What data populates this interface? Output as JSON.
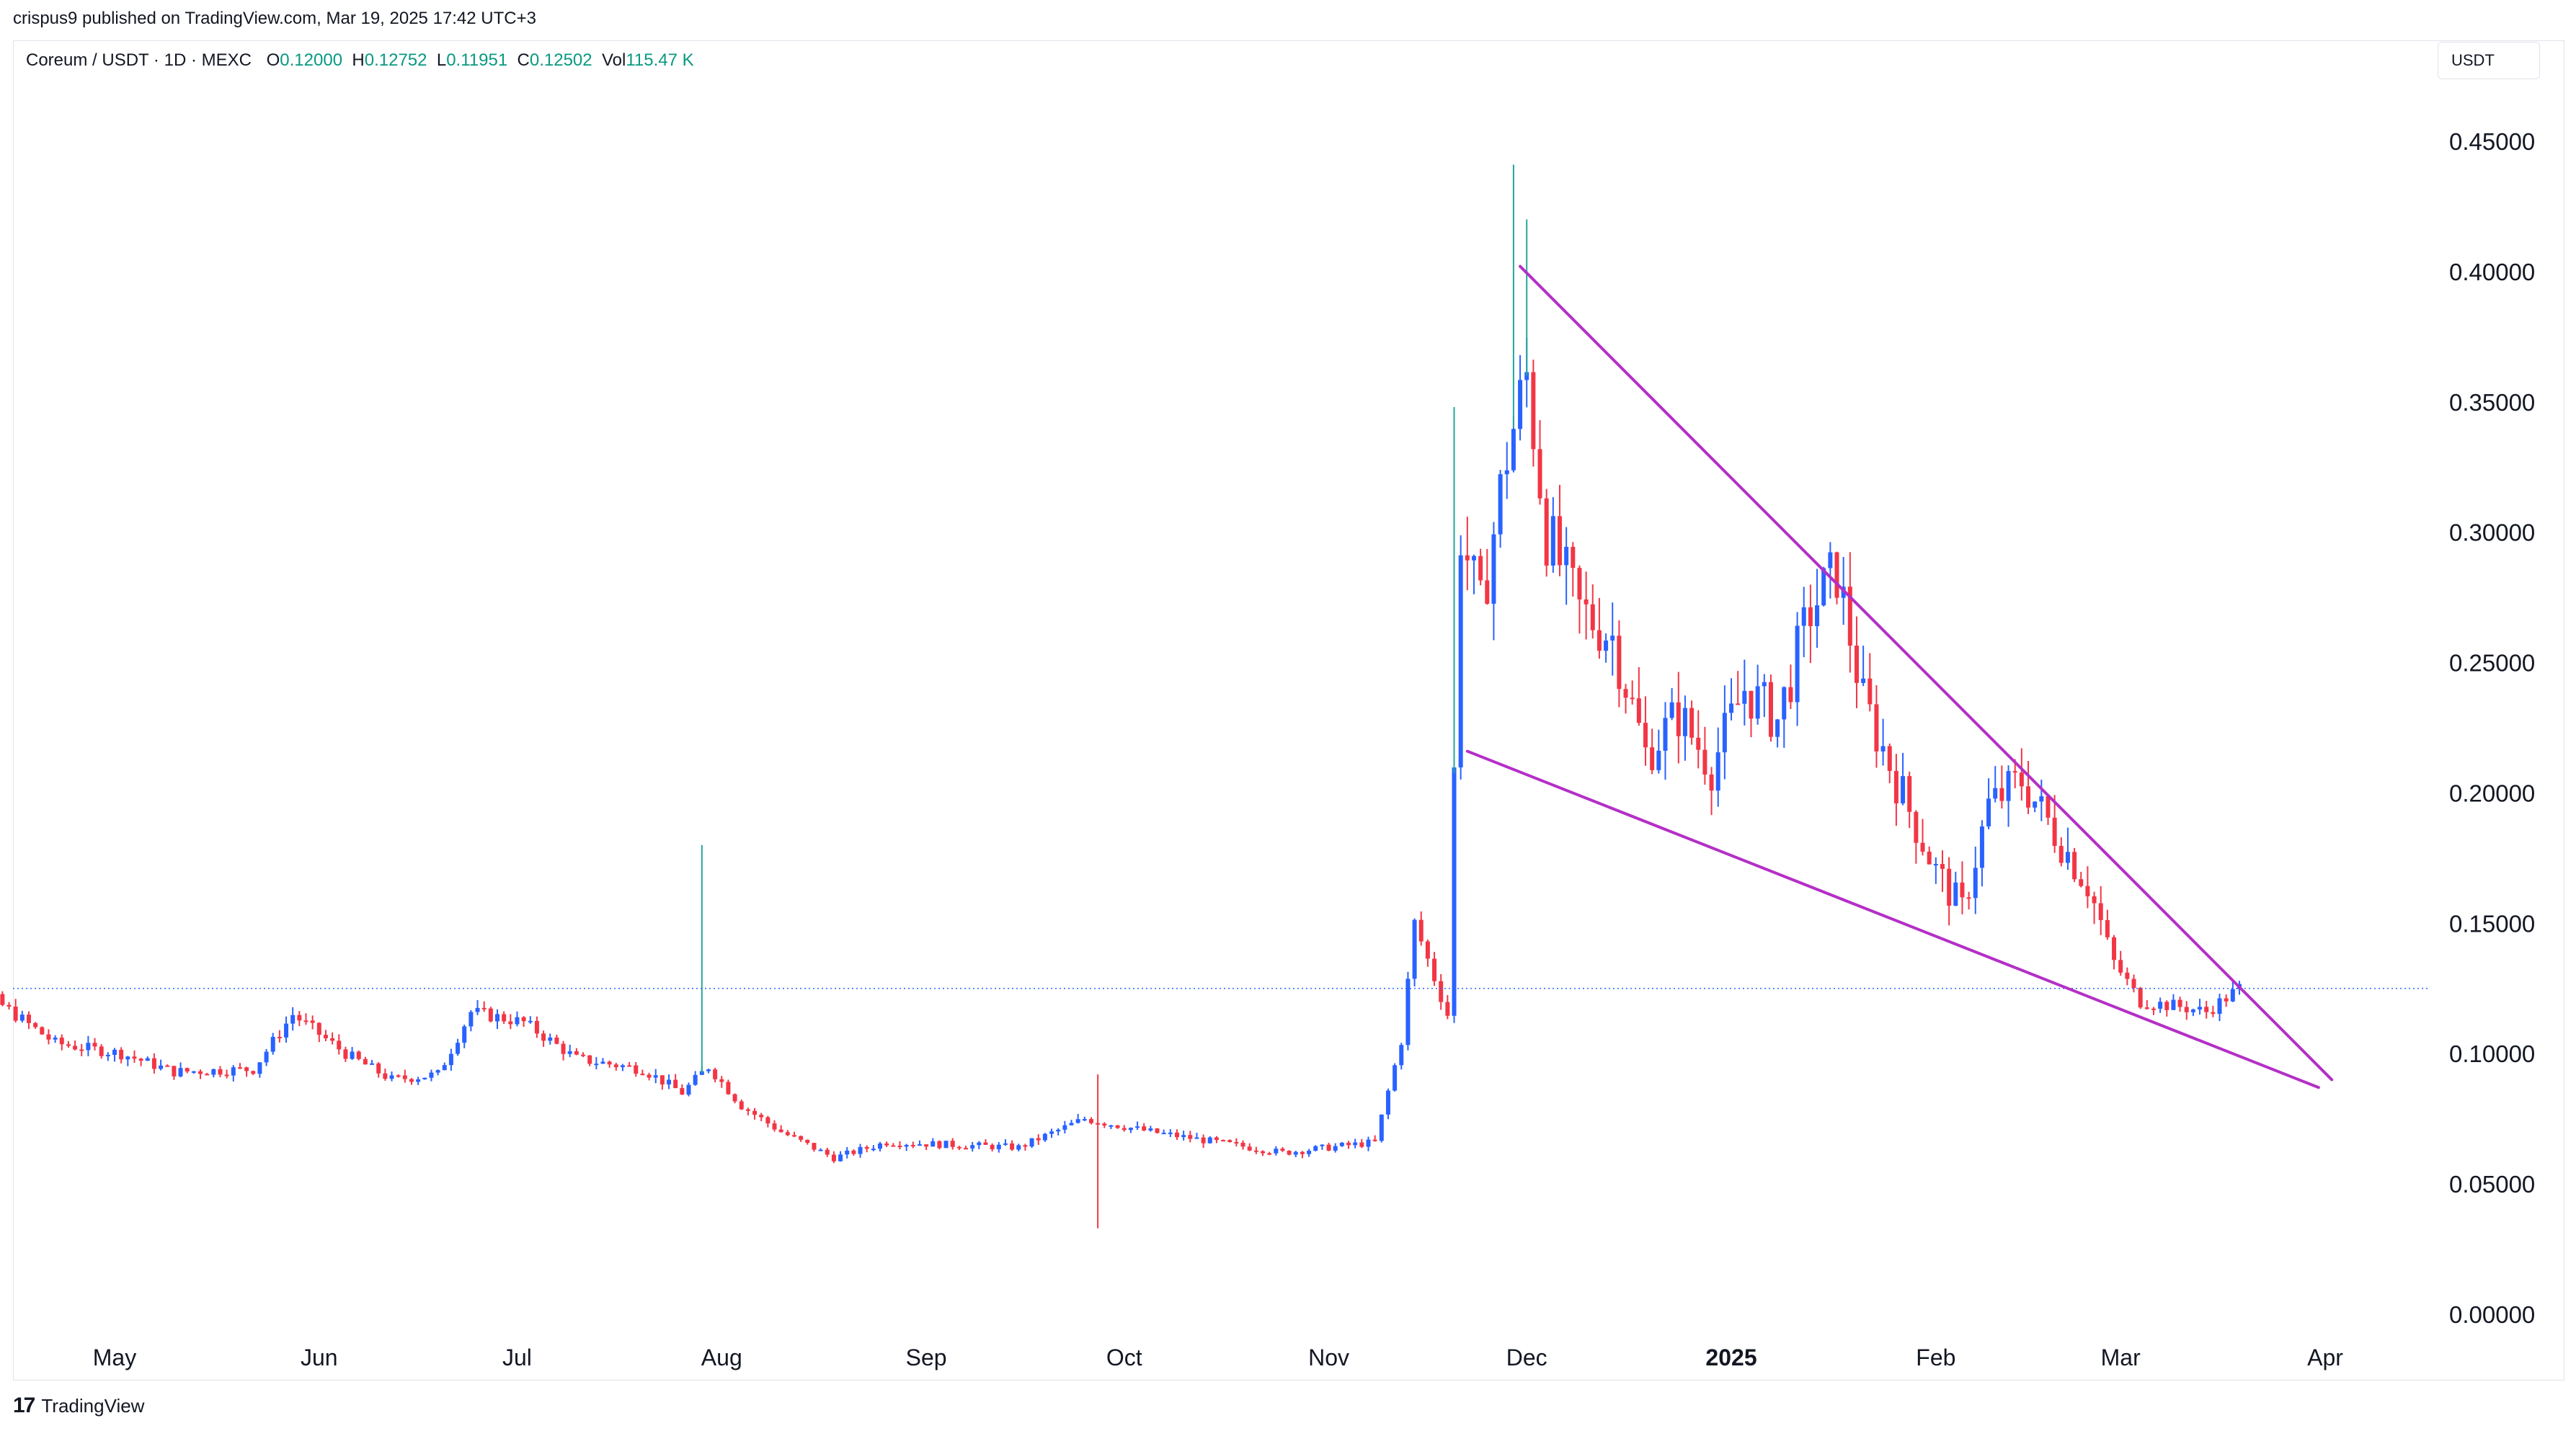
{
  "header": {
    "published": "crispus9 published on TradingView.com, Mar 19, 2025 17:42 UTC+3"
  },
  "legend": {
    "symbol": "Coreum / USDT · 1D · MEXC",
    "open_label": "O",
    "open": "0.12000",
    "high_label": "H",
    "high": "0.12752",
    "low_label": "L",
    "low": "0.11951",
    "close_label": "C",
    "close": "0.12502",
    "vol_label": "Vol",
    "vol": "115.47 K"
  },
  "unit_badge": "USDT",
  "footer": {
    "brand": "TradingView",
    "mark": "17"
  },
  "colors": {
    "up": "#2962ff",
    "down": "#f23645",
    "trendline": "#b42fc6",
    "price_line": "#2962ff"
  },
  "chart_data": {
    "type": "candlestick",
    "x_type": "date",
    "x_start": "2025-04-12",
    "x_end": "2025-04-30",
    "y_range": [
      -0.005,
      0.47
    ],
    "y_ticks": [
      "0.45000",
      "0.40000",
      "0.35000",
      "0.30000",
      "0.25000",
      "0.20000",
      "0.15000",
      "0.10000",
      "0.05000",
      "0.00000"
    ],
    "x_ticks": [
      {
        "label": "May",
        "date": "2024-05-01"
      },
      {
        "label": "Jun",
        "date": "2024-06-01"
      },
      {
        "label": "Jul",
        "date": "2024-07-01"
      },
      {
        "label": "Aug",
        "date": "2024-08-01"
      },
      {
        "label": "Sep",
        "date": "2024-09-01"
      },
      {
        "label": "Oct",
        "date": "2024-10-01"
      },
      {
        "label": "Nov",
        "date": "2024-11-01"
      },
      {
        "label": "Dec",
        "date": "2024-12-01"
      },
      {
        "label": "2025",
        "date": "2025-01-01",
        "bold": true
      },
      {
        "label": "Feb",
        "date": "2025-02-01"
      },
      {
        "label": "Mar",
        "date": "2025-03-01"
      },
      {
        "label": "Apr",
        "date": "2025-04-01"
      }
    ],
    "last_price": 0.12502,
    "candle_closes_keypoints": [
      [
        "2024-04-02",
        0.118
      ],
      [
        "2024-04-12",
        0.122
      ],
      [
        "2024-04-22",
        0.104
      ],
      [
        "2024-05-02",
        0.1
      ],
      [
        "2024-05-10",
        0.093
      ],
      [
        "2024-05-22",
        0.094
      ],
      [
        "2024-05-28",
        0.115
      ],
      [
        "2024-06-05",
        0.1
      ],
      [
        "2024-06-12",
        0.09
      ],
      [
        "2024-06-19",
        0.092
      ],
      [
        "2024-06-24",
        0.116
      ],
      [
        "2024-07-02",
        0.112
      ],
      [
        "2024-07-10",
        0.098
      ],
      [
        "2024-07-20",
        0.094
      ],
      [
        "2024-07-26",
        0.085
      ],
      [
        "2024-07-30",
        0.095
      ],
      [
        "2024-08-04",
        0.08
      ],
      [
        "2024-08-10",
        0.07
      ],
      [
        "2024-08-18",
        0.06
      ],
      [
        "2024-08-26",
        0.066
      ],
      [
        "2024-09-05",
        0.065
      ],
      [
        "2024-09-15",
        0.064
      ],
      [
        "2024-09-25",
        0.075
      ],
      [
        "2024-10-05",
        0.07
      ],
      [
        "2024-10-15",
        0.066
      ],
      [
        "2024-10-25",
        0.062
      ],
      [
        "2024-11-08",
        0.066
      ],
      [
        "2024-11-12",
        0.105
      ],
      [
        "2024-11-14",
        0.15
      ],
      [
        "2024-11-19",
        0.115
      ],
      [
        "2024-11-21",
        0.3
      ],
      [
        "2024-11-24",
        0.27
      ],
      [
        "2024-11-28",
        0.33
      ],
      [
        "2024-12-01",
        0.36
      ],
      [
        "2024-12-04",
        0.3
      ],
      [
        "2024-12-09",
        0.27
      ],
      [
        "2024-12-14",
        0.26
      ],
      [
        "2024-12-19",
        0.215
      ],
      [
        "2024-12-24",
        0.23
      ],
      [
        "2024-12-29",
        0.21
      ],
      [
        "2025-01-03",
        0.24
      ],
      [
        "2025-01-08",
        0.228
      ],
      [
        "2025-01-13",
        0.27
      ],
      [
        "2025-01-17",
        0.285
      ],
      [
        "2025-01-21",
        0.235
      ],
      [
        "2025-01-26",
        0.205
      ],
      [
        "2025-02-01",
        0.17
      ],
      [
        "2025-02-05",
        0.155
      ],
      [
        "2025-02-09",
        0.195
      ],
      [
        "2025-02-14",
        0.205
      ],
      [
        "2025-02-19",
        0.185
      ],
      [
        "2025-02-24",
        0.165
      ],
      [
        "2025-02-28",
        0.135
      ],
      [
        "2025-03-04",
        0.12
      ],
      [
        "2025-03-10",
        0.118
      ],
      [
        "2025-03-14",
        0.116
      ],
      [
        "2025-03-19",
        0.125
      ]
    ],
    "spikes": [
      {
        "date": "2024-07-29",
        "high": 0.18
      },
      {
        "date": "2024-09-27",
        "low": 0.033,
        "high": 0.092
      },
      {
        "date": "2024-11-20",
        "high": 0.348
      },
      {
        "date": "2024-11-29",
        "high": 0.441
      },
      {
        "date": "2024-12-01",
        "high": 0.42
      }
    ],
    "trendlines": [
      {
        "name": "upper",
        "from": [
          "2024-11-30",
          0.402
        ],
        "to": [
          "2025-04-02",
          0.09
        ]
      },
      {
        "name": "lower",
        "from": [
          "2024-11-22",
          0.216
        ],
        "to": [
          "2025-03-31",
          0.087
        ]
      }
    ]
  }
}
